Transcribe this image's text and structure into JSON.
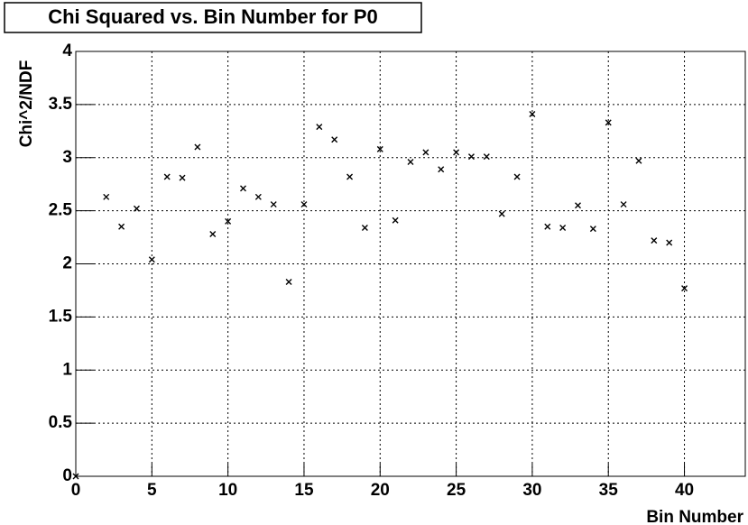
{
  "chart_data": {
    "type": "scatter",
    "title": "Chi Squared vs. Bin Number for P0",
    "x_label": "Bin Number",
    "y_label": "Chi^2/NDF",
    "x": [
      0,
      2,
      3,
      4,
      5,
      6,
      7,
      8,
      9,
      10,
      11,
      12,
      13,
      14,
      15,
      16,
      17,
      18,
      19,
      20,
      21,
      22,
      23,
      24,
      25,
      26,
      27,
      28,
      29,
      30,
      31,
      32,
      33,
      34,
      35,
      36,
      37,
      38,
      39,
      40
    ],
    "values": [
      0,
      2.63,
      2.35,
      2.52,
      2.04,
      2.82,
      2.81,
      3.1,
      2.28,
      2.4,
      2.71,
      2.63,
      2.56,
      1.83,
      2.56,
      3.29,
      3.17,
      2.82,
      2.34,
      3.08,
      2.41,
      2.96,
      3.05,
      2.89,
      3.05,
      3.01,
      3.01,
      2.47,
      2.82,
      3.41,
      2.35,
      2.34,
      2.55,
      2.33,
      3.33,
      2.56,
      2.97,
      2.22,
      2.2,
      1.77
    ],
    "color": "#000000",
    "xlim": [
      0,
      44
    ],
    "xticks": [
      0,
      5,
      10,
      15,
      20,
      25,
      30,
      35,
      40
    ],
    "ylim": [
      0,
      4
    ],
    "yticks": [
      0,
      0.5,
      1,
      1.5,
      2,
      2.5,
      3,
      3.5,
      4
    ],
    "grid": true
  }
}
